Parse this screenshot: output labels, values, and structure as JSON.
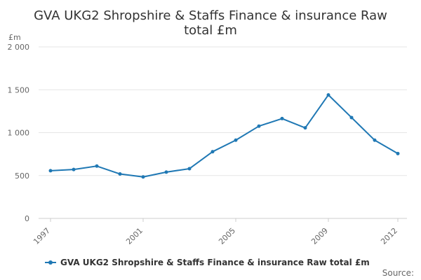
{
  "chart_data": {
    "type": "line",
    "title_lines": [
      "GVA UKG2 Shropshire & Staffs Finance & insurance Raw",
      "total £m"
    ],
    "y_unit_label": "£m",
    "x": [
      1997,
      1998,
      1999,
      2000,
      2001,
      2002,
      2003,
      2004,
      2005,
      2006,
      2007,
      2008,
      2009,
      2010,
      2011,
      2012
    ],
    "x_tick_labels": [
      "1997",
      "2001",
      "2005",
      "2009",
      "2012"
    ],
    "x_tick_values": [
      1997,
      2001,
      2005,
      2009,
      2012
    ],
    "xlim": [
      1997,
      2012
    ],
    "series": [
      {
        "name": "GVA UKG2 Shropshire & Staffs Finance & insurance Raw total £m",
        "color": "#1f78b4",
        "values": [
          556,
          570,
          610,
          518,
          484,
          540,
          580,
          778,
          912,
          1076,
          1164,
          1056,
          1440,
          1176,
          912,
          756
        ]
      }
    ],
    "ylim": [
      0,
      2000
    ],
    "y_ticks": [
      0,
      500,
      1000,
      1500,
      2000
    ],
    "y_tick_labels": [
      "0",
      "500",
      "1 000",
      "1 500",
      "2 000"
    ],
    "grid": true,
    "legend_position": "bottom"
  },
  "source_label": "Source:"
}
